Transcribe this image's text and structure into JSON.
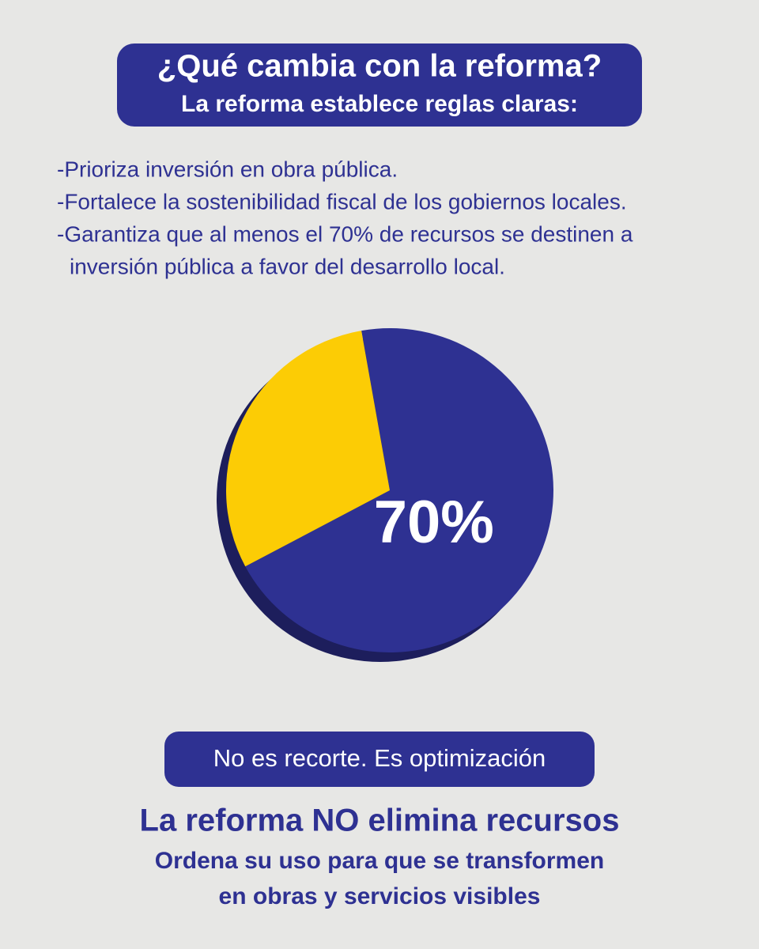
{
  "header": {
    "title": "¿Qué cambia con la reforma?",
    "subtitle": "La reforma establece reglas claras:"
  },
  "bullets": [
    "-Prioriza inversión en obra pública.",
    "-Fortalece la sostenibilidad fiscal de los gobiernos locales.",
    "-Garantiza que al menos el 70% de recursos se destinen a",
    "inversión pública a favor del desarrollo local."
  ],
  "chart_data": {
    "type": "pie",
    "values": [
      70,
      30
    ],
    "value_labels": [
      "70%",
      null
    ],
    "colors": [
      "#2e3192",
      "#fccc05"
    ]
  },
  "footer": {
    "badge": "No es recorte. Es optimización",
    "headline": "La reforma NO elimina recursos",
    "lines": [
      "Ordena su uso para que se transformen",
      "en obras y servicios visibles"
    ]
  }
}
